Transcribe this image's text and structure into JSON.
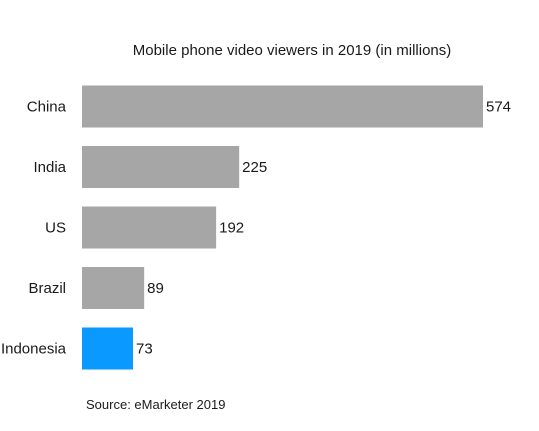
{
  "chart_data": {
    "type": "bar",
    "orientation": "horizontal",
    "title": "Mobile phone video viewers in 2019 (in millions)",
    "categories": [
      "China",
      "India",
      "US",
      "Brazil",
      "Indonesia"
    ],
    "values": [
      574,
      225,
      192,
      89,
      73
    ],
    "value_labels": [
      "574",
      "225",
      "192",
      "89",
      "73"
    ],
    "bar_colors": [
      "#a6a6a6",
      "#a6a6a6",
      "#a6a6a6",
      "#a6a6a6",
      "#0a99ff"
    ],
    "xlim": [
      0,
      574
    ],
    "grid": false,
    "legend": "none"
  },
  "source": "Source: eMarketer 2019"
}
